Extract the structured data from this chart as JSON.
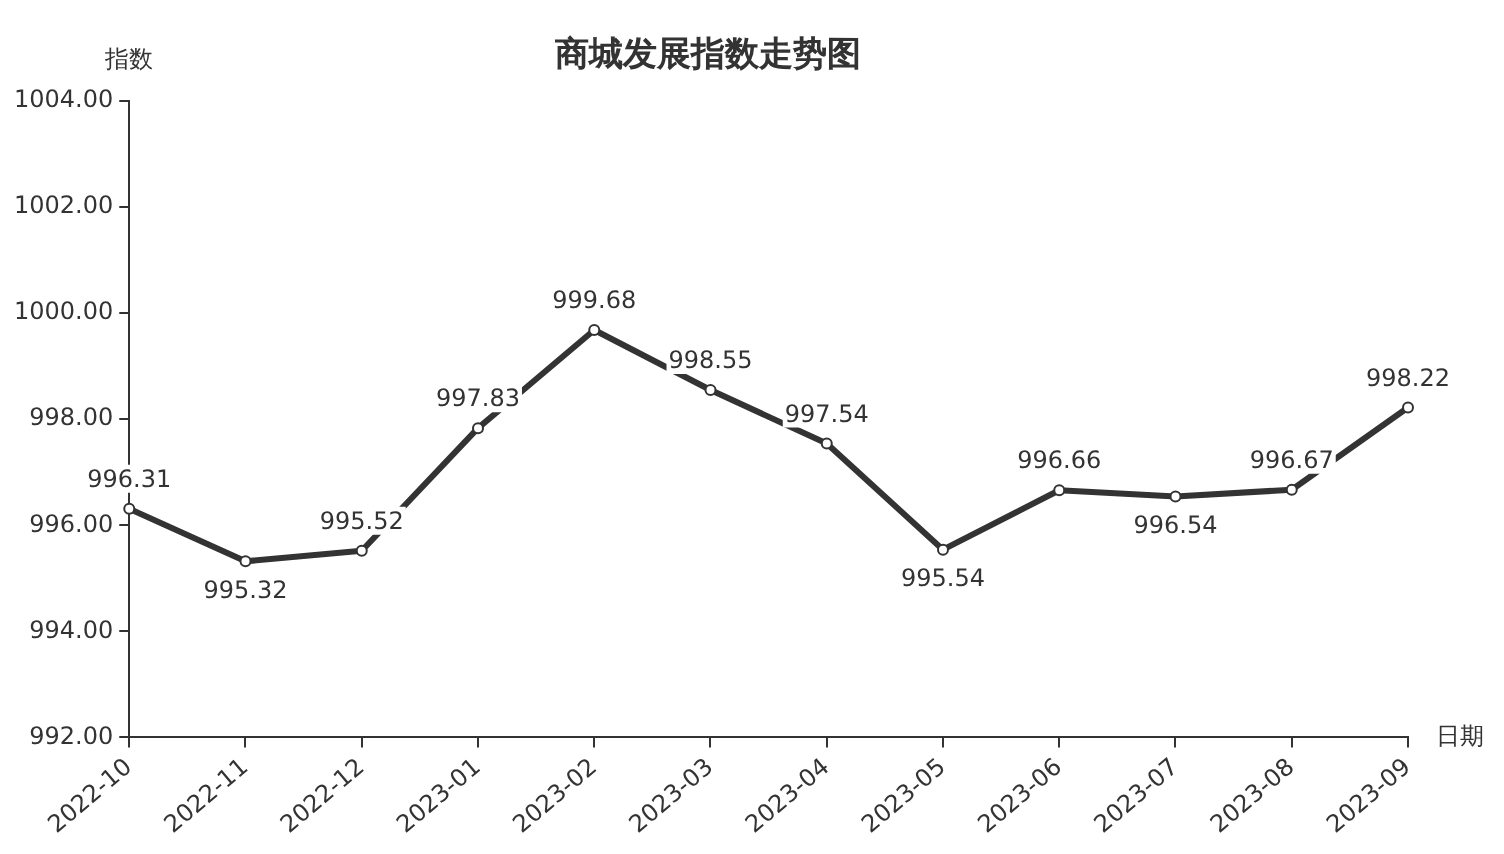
{
  "chart_data": {
    "type": "line",
    "title": "商城发展指数走势图",
    "xlabel": "日期",
    "ylabel": "指数",
    "categories": [
      "2022-10",
      "2022-11",
      "2022-12",
      "2023-01",
      "2023-02",
      "2023-03",
      "2023-04",
      "2023-05",
      "2023-06",
      "2023-07",
      "2023-08",
      "2023-09"
    ],
    "series": [
      {
        "color": "#333333",
        "values": [
          996.31,
          995.32,
          995.52,
          997.83,
          999.68,
          998.55,
          997.54,
          995.54,
          996.66,
          996.54,
          996.67,
          998.22
        ]
      }
    ],
    "ylim": [
      992,
      1004
    ],
    "yticks": [
      {
        "value": 992,
        "label": "992.00"
      },
      {
        "value": 994,
        "label": "994.00"
      },
      {
        "value": 996,
        "label": "996.00"
      },
      {
        "value": 998,
        "label": "998.00"
      },
      {
        "value": 1000,
        "label": "1000.00"
      },
      {
        "value": 1002,
        "label": "1002.00"
      },
      {
        "value": 1004,
        "label": "1004.00"
      }
    ],
    "data_labels": true,
    "grid": false,
    "legend": false,
    "marker": "circle",
    "line_style": "solid"
  }
}
